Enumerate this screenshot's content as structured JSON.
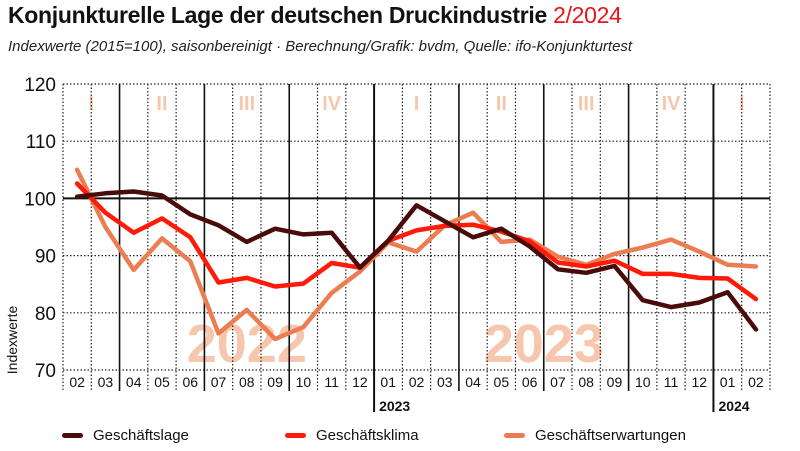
{
  "header": {
    "title_main": "Konjunkturelle Lage der deutschen Druckindustrie",
    "title_period": "2/2024",
    "subtitle": "Indexwerte (2015=100), saisonbereinigt · Berechnung/Grafik: bvdm, Quelle: ifo-Konjunkturtest"
  },
  "colors": {
    "accent": "#e8141a",
    "geschaeftslage": "#4a0b0b",
    "geschaeftsklima": "#ff1a0a",
    "geschaeftserwartungen": "#ec7d52",
    "watermark": "#f7c7ad"
  },
  "chart_data": {
    "type": "line",
    "title": "Konjunkturelle Lage der deutschen Druckindustrie 2/2024",
    "subtitle": "Indexwerte (2015=100), saisonbereinigt · Berechnung/Grafik: bvdm, Quelle: ifo-Konjunkturtest",
    "xlabel": "",
    "ylabel": "Indexwerte",
    "ylim": [
      70,
      120
    ],
    "yticks": [
      70,
      80,
      90,
      100,
      110,
      120
    ],
    "grid": true,
    "legend_position": "bottom",
    "categories": [
      "02",
      "03",
      "04",
      "05",
      "06",
      "07",
      "08",
      "09",
      "10",
      "11",
      "12",
      "01",
      "02",
      "03",
      "04",
      "05",
      "06",
      "07",
      "08",
      "09",
      "10",
      "11",
      "12",
      "01",
      "02"
    ],
    "year_labels": [
      {
        "label": "2023",
        "start_index": 11
      },
      {
        "label": "2024",
        "start_index": 23
      }
    ],
    "quarter_labels": [
      {
        "label": "I",
        "from_index": 0,
        "to_index": 1
      },
      {
        "label": "II",
        "from_index": 2,
        "to_index": 4
      },
      {
        "label": "III",
        "from_index": 5,
        "to_index": 7
      },
      {
        "label": "IV",
        "from_index": 8,
        "to_index": 10
      },
      {
        "label": "I",
        "from_index": 11,
        "to_index": 13
      },
      {
        "label": "II",
        "from_index": 14,
        "to_index": 16
      },
      {
        "label": "III",
        "from_index": 17,
        "to_index": 19
      },
      {
        "label": "IV",
        "from_index": 20,
        "to_index": 22
      },
      {
        "label": "I",
        "from_index": 23,
        "to_index": 24
      }
    ],
    "watermarks": [
      {
        "label": "2022",
        "from_index": 2,
        "to_index": 10
      },
      {
        "label": "2023",
        "from_index": 11,
        "to_index": 22
      }
    ],
    "reference_line": 100,
    "series": [
      {
        "name": "Geschäftslage",
        "values": [
          100.3,
          100.9,
          101.2,
          100.5,
          97.2,
          95.3,
          92.4,
          94.7,
          93.7,
          94.0,
          87.9,
          92.6,
          98.8,
          96.0,
          93.2,
          94.7,
          91.6,
          87.6,
          87.0,
          88.2,
          82.2,
          81.0,
          81.8,
          83.6,
          77.1
        ]
      },
      {
        "name": "Geschäftsklima",
        "values": [
          102.6,
          97.5,
          94.0,
          96.5,
          93.2,
          85.3,
          86.1,
          84.6,
          85.1,
          88.7,
          87.9,
          92.6,
          94.4,
          95.2,
          95.4,
          94.2,
          92.5,
          88.8,
          88.1,
          89.1,
          86.8,
          86.8,
          86.1,
          86.0,
          82.4
        ]
      },
      {
        "name": "Geschäftserwartungen",
        "values": [
          105.0,
          95.0,
          87.5,
          93.0,
          89.0,
          76.4,
          80.5,
          75.4,
          77.5,
          83.5,
          87.2,
          92.3,
          90.7,
          95.3,
          97.5,
          92.4,
          92.8,
          89.8,
          88.4,
          90.3,
          91.4,
          92.8,
          90.7,
          88.4,
          88.1
        ]
      }
    ]
  }
}
